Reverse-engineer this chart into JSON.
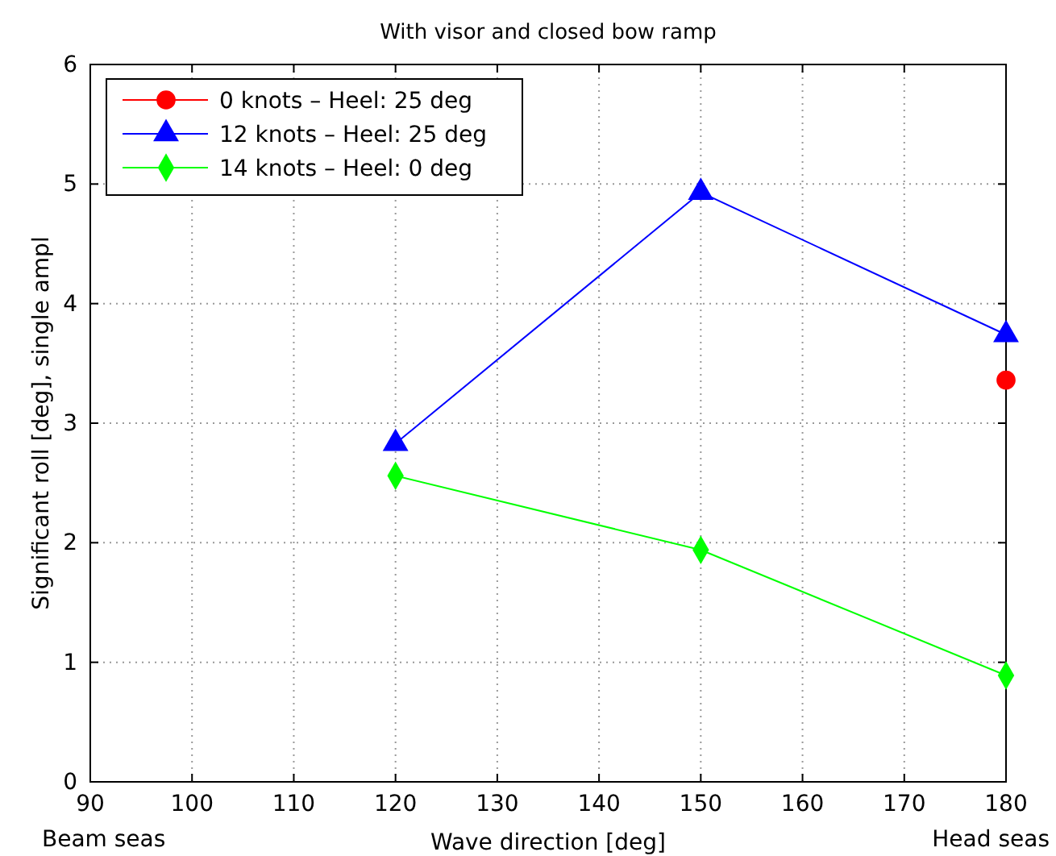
{
  "chart_data": {
    "type": "line",
    "title": "With visor and closed bow ramp",
    "xlabel": "Wave direction [deg]",
    "ylabel": "Significant roll [deg], single ampl",
    "x": [
      120,
      150,
      180
    ],
    "series": [
      {
        "name": "0 knots – Heel: 25 deg",
        "color": "#ff0000",
        "marker": "circle",
        "values": [
          null,
          null,
          3.36
        ]
      },
      {
        "name": "12 knots – Heel: 25 deg",
        "color": "#0000ff",
        "marker": "triangle",
        "values": [
          2.83,
          4.93,
          3.74
        ]
      },
      {
        "name": "14 knots – Heel: 0 deg",
        "color": "#00ff00",
        "marker": "diamond",
        "values": [
          2.56,
          1.94,
          0.89
        ]
      }
    ],
    "xlim": [
      90,
      180
    ],
    "xticks": [
      90,
      100,
      110,
      120,
      130,
      140,
      150,
      160,
      170,
      180
    ],
    "ylim": [
      0,
      6
    ],
    "yticks": [
      0,
      1,
      2,
      3,
      4,
      5,
      6
    ],
    "grid": true,
    "legend": "top left",
    "line_style": "solid",
    "annotations": [
      "Beam seas",
      "Head seas"
    ]
  }
}
